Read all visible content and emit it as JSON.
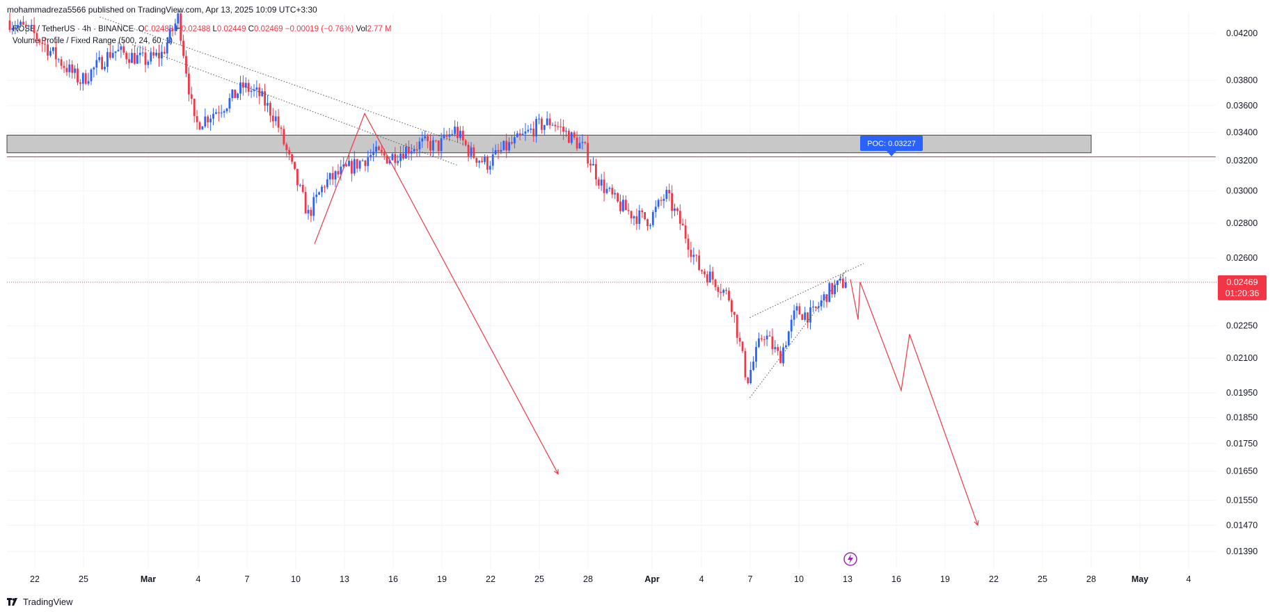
{
  "header": {
    "published": "mohammadreza5566 published on TradingView.com, Apr 13, 2025 10:09 UTC+3:30"
  },
  "legend": {
    "symbol": "ROSE / TetherUS · 4h · BINANCE",
    "o_label": "O",
    "o_value": "0.02488",
    "h_label": "H",
    "h_value": "0.02488",
    "l_label": "L",
    "l_value": "0.02449",
    "c_label": "C",
    "c_value": "0.02469",
    "change": "−0.00019 (−0.76%)",
    "vol_label": "Vol",
    "vol_value": "2.77 M",
    "indicator": "Volume Profile / Fixed Range (500, 24, 60, 1)"
  },
  "branding": {
    "label": "TradingView"
  },
  "colors": {
    "up": "#2962ff",
    "down": "#f23645",
    "grid": "#f0f3fa",
    "zone": "#c8c8c8",
    "poc": "#2962ff",
    "text": "#131722"
  },
  "chart_data": {
    "type": "candlestick",
    "y_axis": {
      "scale": "log",
      "position": "right",
      "range": [
        0.0133,
        0.0435
      ],
      "ticks": [
        "0.04200",
        "0.03800",
        "0.03600",
        "0.03400",
        "0.03200",
        "0.03000",
        "0.02800",
        "0.02600",
        "0.02250",
        "0.02100",
        "0.01950",
        "0.01850",
        "0.01750",
        "0.01650",
        "0.01550",
        "0.01470",
        "0.01390"
      ]
    },
    "x_axis": {
      "labels": [
        "22",
        "25",
        "Mar",
        "4",
        "7",
        "10",
        "13",
        "16",
        "19",
        "22",
        "25",
        "28",
        "Apr",
        "4",
        "7",
        "10",
        "13",
        "16",
        "19",
        "22",
        "25",
        "28",
        "May",
        "4"
      ],
      "bold_labels": [
        "Mar",
        "Apr",
        "May"
      ]
    },
    "last_price": {
      "value": "0.02469",
      "countdown": "01:20:36"
    },
    "resistance_line": {
      "price": 0.03227
    },
    "supply_zone": {
      "low": 0.03255,
      "high": 0.0338,
      "from": "Feb 20",
      "to": "Apr 28"
    },
    "poc": {
      "label": "POC: 0.03227",
      "price": 0.03227
    },
    "trendlines": [
      {
        "style": "dotted",
        "from": [
          "Feb 26",
          0.0435
        ],
        "to": [
          "Mar 21",
          0.0329
        ]
      },
      {
        "style": "dotted",
        "from": [
          "Feb 28",
          0.041
        ],
        "to": [
          "Mar 20",
          0.0317
        ]
      },
      {
        "style": "dotted",
        "from": [
          "Apr 07",
          0.0193
        ],
        "to": [
          "Apr 13",
          0.0254
        ]
      },
      {
        "style": "dotted",
        "from": [
          "Apr 07",
          0.0229
        ],
        "to": [
          "Apr 14",
          0.0257
        ]
      }
    ],
    "projections": [
      {
        "points": [
          [
            "Mar 11",
            0.0268
          ],
          [
            "Mar 14",
            0.0354
          ],
          [
            "Mar 30",
            0.0164
          ]
        ]
      },
      {
        "points": [
          [
            "Apr 13",
            0.02485
          ],
          [
            "Apr 14",
            0.0228
          ],
          [
            "Apr 14",
            0.0247
          ],
          [
            "Apr 17",
            0.0196
          ],
          [
            "Apr 18",
            0.0221
          ],
          [
            "Apr 21",
            0.0147
          ]
        ]
      }
    ],
    "path": [
      [
        "Feb 19",
        0.0442
      ],
      [
        "Feb 22",
        0.0421
      ],
      [
        "Feb 24",
        0.0392
      ],
      [
        "Feb 25",
        0.0379
      ],
      [
        "Feb 27",
        0.0405
      ],
      [
        "Mar 01",
        0.0396
      ],
      [
        "Mar 02",
        0.0402
      ],
      [
        "Mar 03",
        0.0435
      ],
      [
        "Mar 04",
        0.0345
      ],
      [
        "Mar 06",
        0.0362
      ],
      [
        "Mar 07",
        0.0375
      ],
      [
        "Mar 08",
        0.0368
      ],
      [
        "Mar 09",
        0.035
      ],
      [
        "Mar 10",
        0.0315
      ],
      [
        "Mar 11",
        0.0285
      ],
      [
        "Mar 12",
        0.0305
      ],
      [
        "Mar 13",
        0.0312
      ],
      [
        "Mar 14",
        0.0318
      ],
      [
        "Mar 15",
        0.0325
      ],
      [
        "Mar 16",
        0.0322
      ],
      [
        "Mar 17",
        0.0328
      ],
      [
        "Mar 18",
        0.0332
      ],
      [
        "Mar 19",
        0.033
      ],
      [
        "Mar 20",
        0.0342
      ],
      [
        "Mar 21",
        0.0325
      ],
      [
        "Mar 22",
        0.0318
      ],
      [
        "Mar 23",
        0.0328
      ],
      [
        "Mar 24",
        0.0335
      ],
      [
        "Mar 25",
        0.0344
      ],
      [
        "Mar 26",
        0.0348
      ],
      [
        "Mar 27",
        0.0338
      ],
      [
        "Mar 28",
        0.0328
      ],
      [
        "Mar 29",
        0.0305
      ],
      [
        "Mar 30",
        0.0292
      ],
      [
        "Mar 31",
        0.0285
      ],
      [
        "Apr 01",
        0.0282
      ],
      [
        "Apr 02",
        0.0298
      ],
      [
        "Apr 03",
        0.0278
      ],
      [
        "Apr 04",
        0.0255
      ],
      [
        "Apr 05",
        0.0248
      ],
      [
        "Apr 06",
        0.0238
      ],
      [
        "Apr 07",
        0.02
      ],
      [
        "Apr 08",
        0.0222
      ],
      [
        "Apr 09",
        0.021
      ],
      [
        "Apr 10",
        0.0232
      ],
      [
        "Apr 11",
        0.023
      ],
      [
        "Apr 12",
        0.0242
      ],
      [
        "Apr 13",
        0.0247
      ]
    ]
  }
}
